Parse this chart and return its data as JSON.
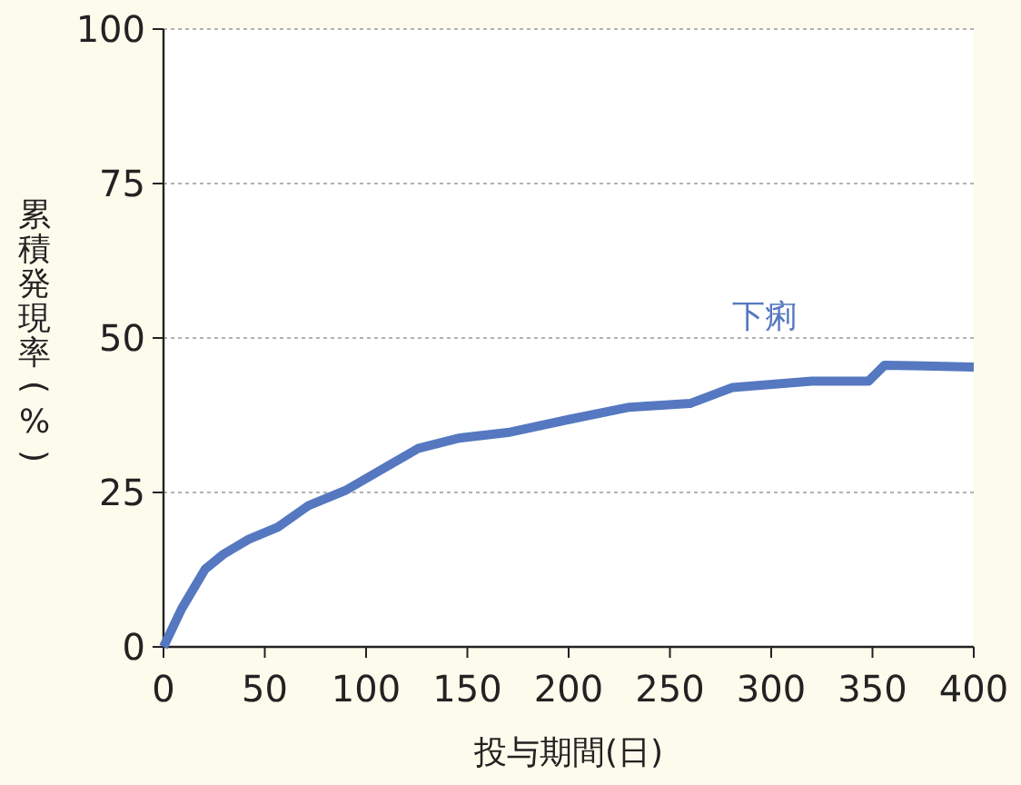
{
  "chart_data": {
    "type": "line",
    "xlabel": "投与期間(日)",
    "ylabel": "累積発現率(%)",
    "series": [
      {
        "name": "下痢",
        "color": "#5578c0",
        "x": [
          0,
          9,
          20.6,
          29.6,
          42,
          56.5,
          71.7,
          89.7,
          105,
          125.6,
          146,
          170,
          200,
          230,
          260,
          281,
          320,
          348,
          356,
          400
        ],
        "values": [
          0,
          6.2,
          12.6,
          15,
          17.4,
          19.4,
          22.9,
          25.3,
          28.2,
          32.1,
          33.8,
          34.7,
          36.8,
          38.8,
          39.4,
          42,
          43,
          43,
          45.6,
          45.3
        ]
      }
    ],
    "xlim": [
      0,
      400
    ],
    "xticks": [
      0,
      50,
      100,
      150,
      200,
      250,
      300,
      350,
      400
    ],
    "ylim": [
      0,
      100
    ],
    "yticks": [
      0,
      25,
      50,
      75,
      100
    ],
    "grid": "y",
    "line_style": "solid",
    "legend": false
  }
}
